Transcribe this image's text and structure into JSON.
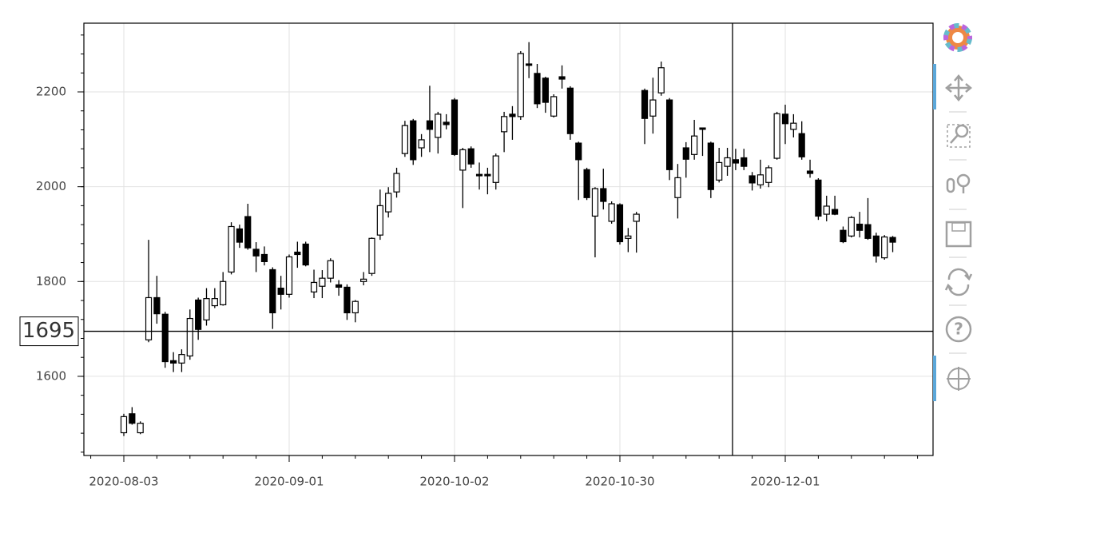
{
  "chart_data": {
    "type": "candlestick",
    "categories": [
      "2020-08-03",
      null,
      null,
      null,
      null,
      null,
      null,
      null,
      null,
      null,
      null,
      null,
      null,
      null,
      null,
      null,
      null,
      null,
      null,
      null,
      "2020-09-01",
      null,
      null,
      null,
      null,
      null,
      null,
      null,
      null,
      null,
      null,
      null,
      null,
      null,
      null,
      null,
      null,
      null,
      null,
      null,
      "2020-10-02",
      null,
      null,
      null,
      null,
      null,
      null,
      null,
      null,
      null,
      null,
      null,
      null,
      null,
      null,
      null,
      null,
      null,
      null,
      null,
      "2020-10-30",
      null,
      null,
      null,
      null,
      null,
      null,
      null,
      null,
      null,
      null,
      null,
      null,
      null,
      null,
      null,
      null,
      null,
      null,
      null,
      "2020-12-01",
      null,
      null,
      null,
      null,
      null,
      null,
      null,
      null,
      null,
      null,
      null,
      null,
      null
    ],
    "open": [
      1481,
      1521,
      1481,
      1677,
      1766,
      1731,
      1633,
      1628,
      1643,
      1761,
      1719,
      1749,
      1751,
      1820,
      1911,
      1937,
      1868,
      1857,
      1825,
      1786,
      1773,
      1862,
      1879,
      1778,
      1790,
      1807,
      1793,
      1788,
      1734,
      1800,
      1817,
      1898,
      1947,
      1989,
      2070,
      2139,
      2082,
      2139,
      2104,
      2136,
      2183,
      2035,
      2080,
      2026,
      2026,
      2009,
      2116,
      2153,
      2148,
      2259,
      2239,
      2229,
      2149,
      2232,
      2208,
      2092,
      2036,
      1938,
      1996,
      1927,
      1962,
      1891,
      1927,
      2203,
      2149,
      2198,
      2183,
      1977,
      2082,
      2068,
      2124,
      2092,
      2014,
      2043,
      2057,
      2061,
      2023,
      2004,
      2009,
      2060,
      2153,
      2121,
      2112,
      2033,
      2014,
      1942,
      1952,
      1908,
      1896,
      1921,
      1920,
      1896,
      1850,
      1893
    ],
    "high": [
      1521,
      1535,
      1505,
      1888,
      1812,
      1736,
      1651,
      1657,
      1741,
      1766,
      1786,
      1786,
      1820,
      1925,
      1920,
      1964,
      1883,
      1874,
      1830,
      1812,
      1857,
      1884,
      1884,
      1825,
      1824,
      1849,
      1803,
      1794,
      1761,
      1820,
      1893,
      1994,
      1999,
      2040,
      2139,
      2143,
      2111,
      2213,
      2158,
      2153,
      2187,
      2082,
      2085,
      2051,
      2040,
      2070,
      2158,
      2170,
      2286,
      2305,
      2259,
      2232,
      2195,
      2256,
      2212,
      2095,
      2040,
      1999,
      2038,
      1969,
      1965,
      1913,
      1947,
      2207,
      2230,
      2264,
      2187,
      2048,
      2094,
      2141,
      2124,
      2095,
      2082,
      2082,
      2080,
      2080,
      2031,
      2057,
      2045,
      2158,
      2173,
      2153,
      2138,
      2057,
      2018,
      1981,
      1981,
      1916,
      1938,
      1947,
      1976,
      1903,
      1898,
      1896
    ],
    "low": [
      1474,
      1498,
      1478,
      1672,
      1711,
      1618,
      1609,
      1609,
      1635,
      1677,
      1707,
      1744,
      1749,
      1815,
      1871,
      1867,
      1820,
      1834,
      1700,
      1741,
      1766,
      1829,
      1832,
      1765,
      1765,
      1798,
      1770,
      1719,
      1714,
      1792,
      1812,
      1888,
      1935,
      1977,
      2063,
      2046,
      2063,
      2073,
      2070,
      2121,
      2065,
      1955,
      2040,
      1994,
      1984,
      1994,
      2073,
      2099,
      2141,
      2229,
      2166,
      2156,
      2146,
      2207,
      2099,
      1972,
      1972,
      1851,
      1952,
      1922,
      1878,
      1862,
      1861,
      2090,
      2112,
      2192,
      2014,
      1933,
      2019,
      2057,
      2065,
      1976,
      2009,
      2023,
      2035,
      2035,
      1992,
      1996,
      1999,
      2057,
      2090,
      2104,
      2057,
      2019,
      1930,
      1927,
      1940,
      1881,
      1893,
      1893,
      1888,
      1840,
      1846,
      1862
    ],
    "close": [
      1515,
      1501,
      1501,
      1766,
      1732,
      1631,
      1628,
      1646,
      1722,
      1699,
      1764,
      1764,
      1800,
      1916,
      1883,
      1871,
      1854,
      1842,
      1734,
      1773,
      1852,
      1857,
      1835,
      1798,
      1807,
      1844,
      1788,
      1734,
      1758,
      1805,
      1891,
      1960,
      1986,
      2028,
      2129,
      2057,
      2099,
      2121,
      2153,
      2131,
      2068,
      2078,
      2048,
      2023,
      2023,
      2065,
      2148,
      2148,
      2281,
      2256,
      2175,
      2178,
      2190,
      2227,
      2112,
      2057,
      1977,
      1996,
      1969,
      1964,
      1884,
      1896,
      1942,
      2144,
      2183,
      2251,
      2036,
      2019,
      2058,
      2107,
      2121,
      1994,
      2051,
      2061,
      2050,
      2043,
      2008,
      2025,
      2040,
      2154,
      2133,
      2134,
      2063,
      2028,
      1938,
      1959,
      1942,
      1884,
      1935,
      1908,
      1891,
      1854,
      1894,
      1883
    ],
    "up_color": "#ffffff",
    "down_color": "#000000",
    "ylim": [
      1433,
      2345
    ],
    "yticks": [
      1600,
      1800,
      2000,
      2200
    ],
    "grid": true,
    "crosshair_y": 1695
  }
}
